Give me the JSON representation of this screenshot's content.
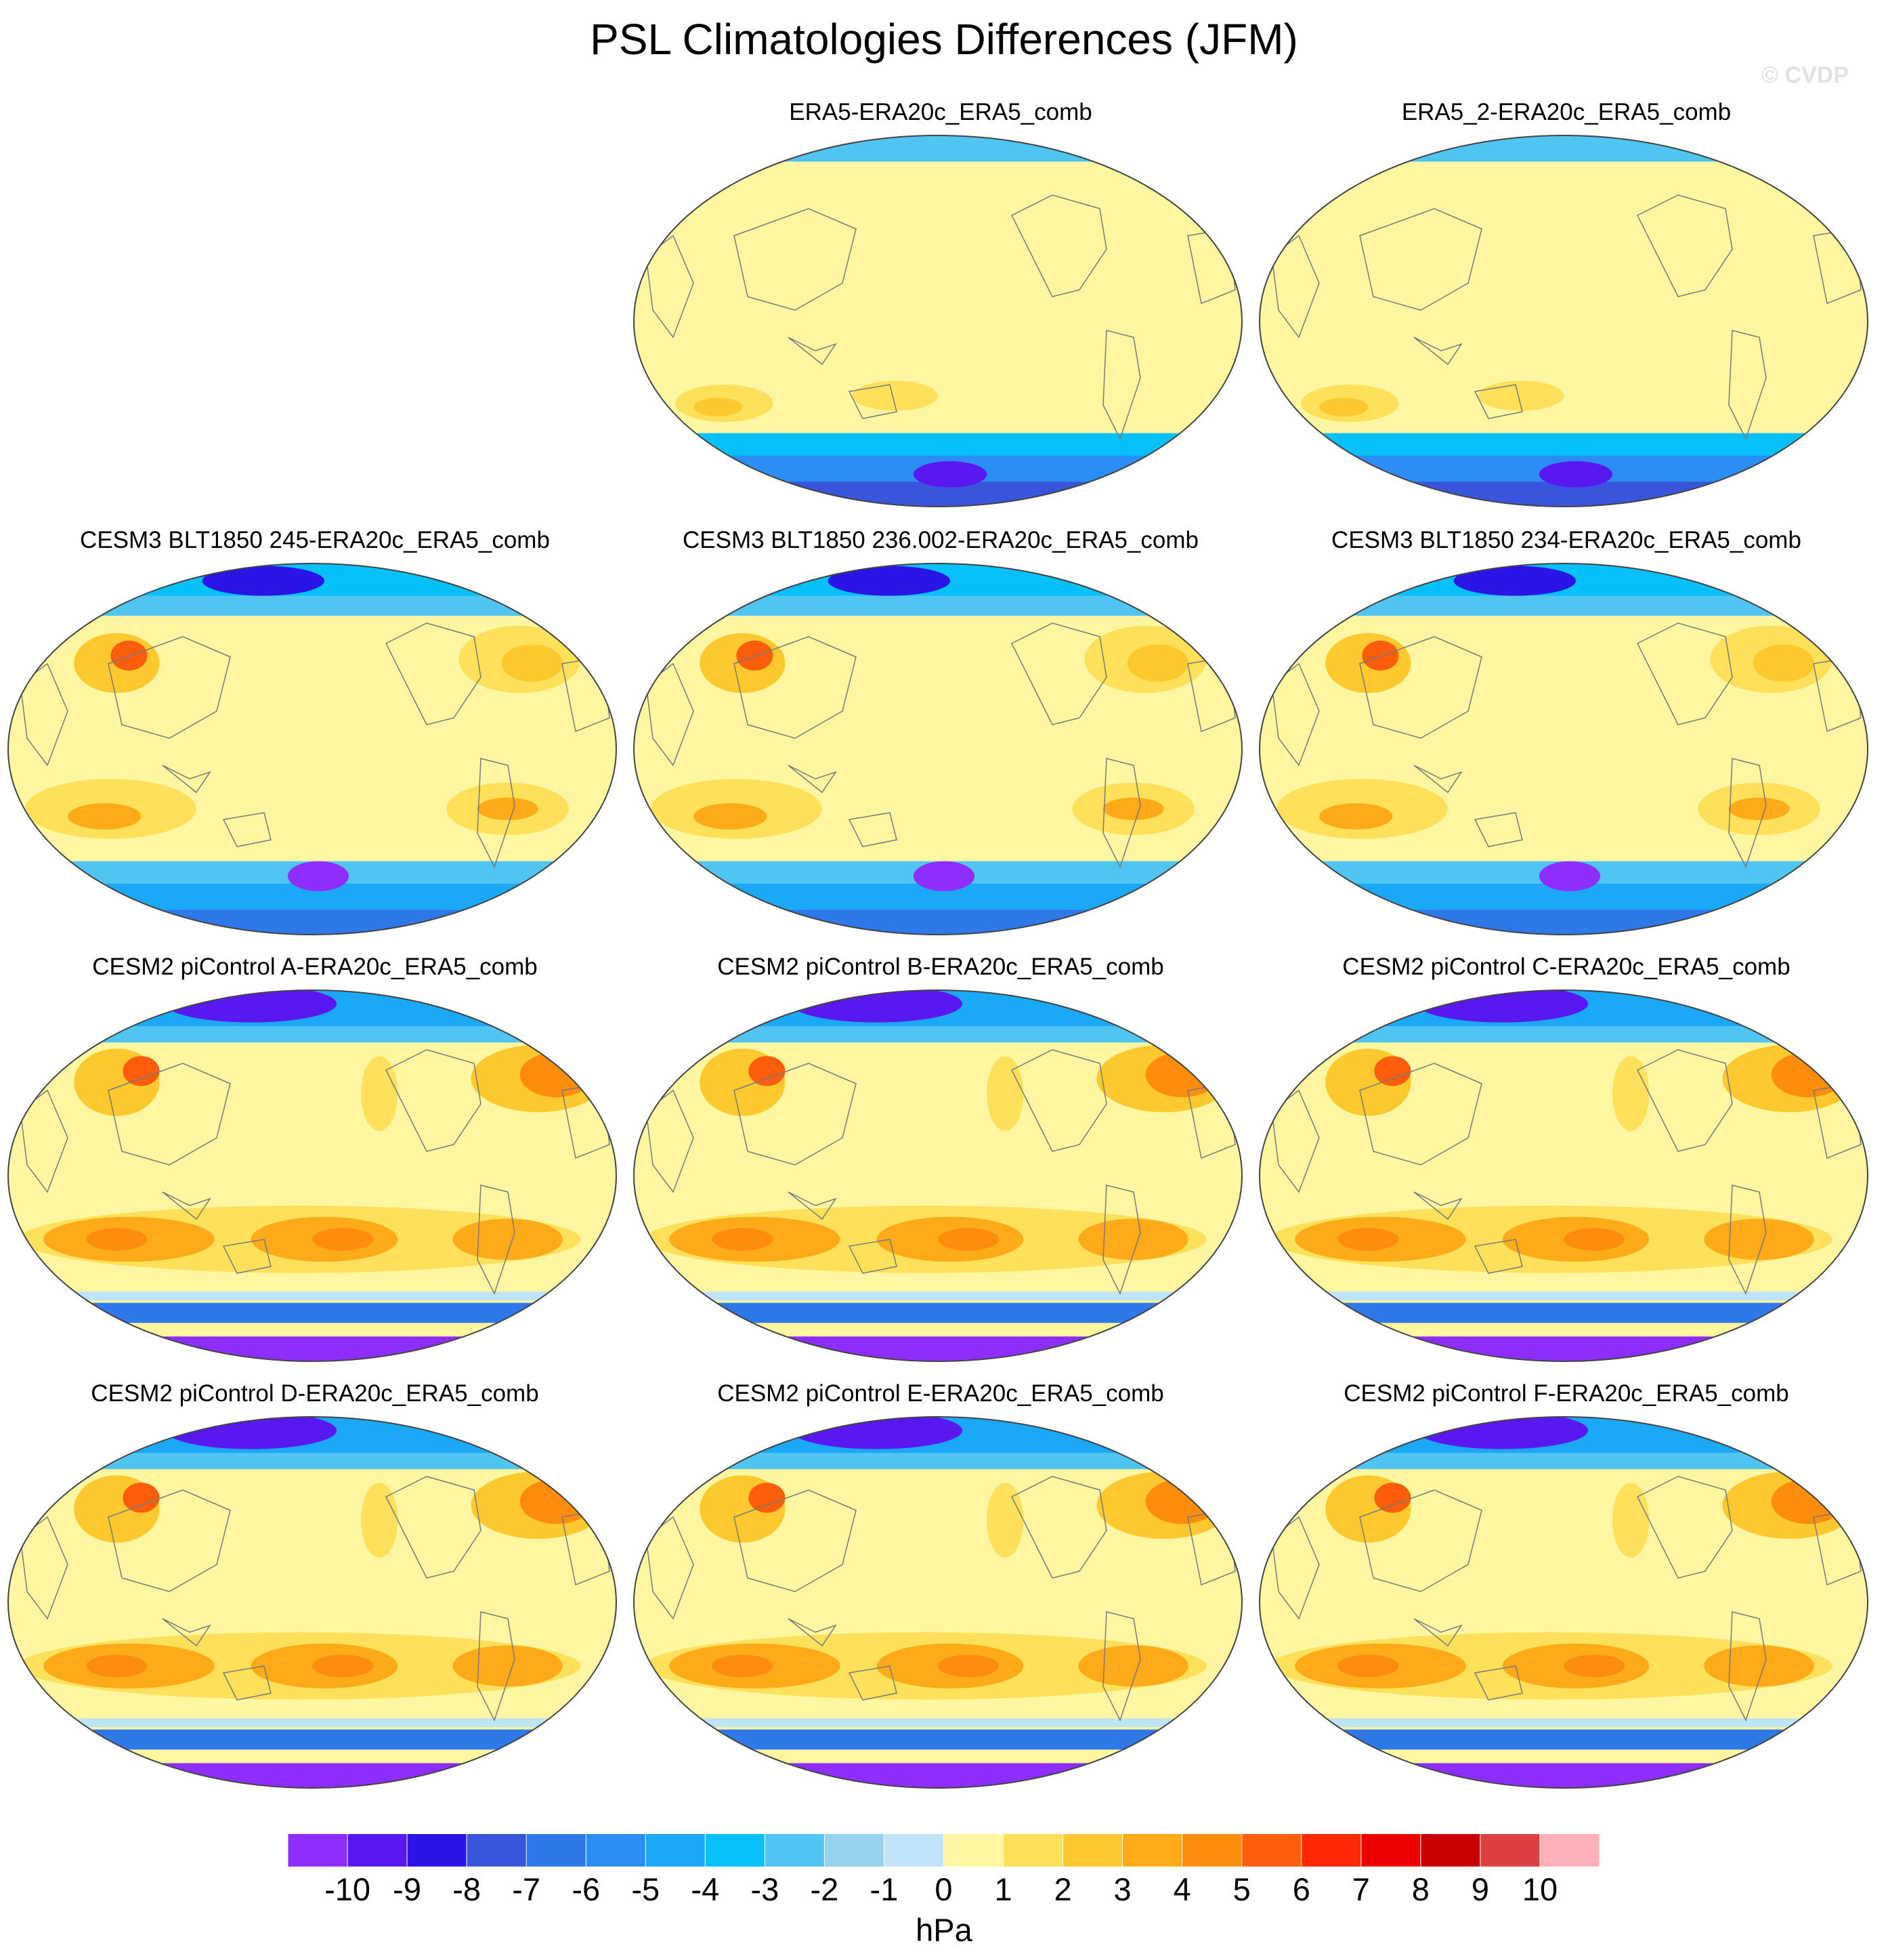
{
  "figure": {
    "title": "PSL Climatologies Differences (JFM)",
    "credit": "© CVDP",
    "variable": "PSL",
    "season": "JFM"
  },
  "panels": [
    {
      "id": "era5",
      "row": 0,
      "col": 1,
      "title": "ERA5-ERA20c_ERA5_comb",
      "pattern": "reanalysis"
    },
    {
      "id": "era5_2",
      "row": 0,
      "col": 2,
      "title": "ERA5_2-ERA20c_ERA5_comb",
      "pattern": "reanalysis"
    },
    {
      "id": "cesm3_245",
      "row": 1,
      "col": 0,
      "title": "CESM3 BLT1850 245-ERA20c_ERA5_comb",
      "pattern": "cesm3"
    },
    {
      "id": "cesm3_236",
      "row": 1,
      "col": 1,
      "title": "CESM3 BLT1850 236.002-ERA20c_ERA5_comb",
      "pattern": "cesm3"
    },
    {
      "id": "cesm3_234",
      "row": 1,
      "col": 2,
      "title": "CESM3 BLT1850 234-ERA20c_ERA5_comb",
      "pattern": "cesm3"
    },
    {
      "id": "cesm2_a",
      "row": 2,
      "col": 0,
      "title": "CESM2 piControl A-ERA20c_ERA5_comb",
      "pattern": "cesm2"
    },
    {
      "id": "cesm2_b",
      "row": 2,
      "col": 1,
      "title": "CESM2 piControl B-ERA20c_ERA5_comb",
      "pattern": "cesm2"
    },
    {
      "id": "cesm2_c",
      "row": 2,
      "col": 2,
      "title": "CESM2 piControl C-ERA20c_ERA5_comb",
      "pattern": "cesm2"
    },
    {
      "id": "cesm2_d",
      "row": 3,
      "col": 0,
      "title": "CESM2 piControl D-ERA20c_ERA5_comb",
      "pattern": "cesm2"
    },
    {
      "id": "cesm2_e",
      "row": 3,
      "col": 1,
      "title": "CESM2 piControl E-ERA20c_ERA5_comb",
      "pattern": "cesm2"
    },
    {
      "id": "cesm2_f",
      "row": 3,
      "col": 2,
      "title": "CESM2 piControl F-ERA20c_ERA5_comb",
      "pattern": "cesm2"
    }
  ],
  "colorbar": {
    "units": "hPa",
    "tick_labels": [
      "-10",
      "-9",
      "-8",
      "-7",
      "-6",
      "-5",
      "-4",
      "-3",
      "-2",
      "-1",
      "0",
      "1",
      "2",
      "3",
      "4",
      "5",
      "6",
      "7",
      "8",
      "9",
      "10"
    ],
    "colors": [
      "#8d2eff",
      "#5a18f0",
      "#2a14e6",
      "#3855db",
      "#2f78ea",
      "#2a8ef5",
      "#1ba8f7",
      "#06c0f9",
      "#51c5f2",
      "#96d2ee",
      "#bfe3f7",
      "#fef6a0",
      "#fee05a",
      "#fec92e",
      "#ffaa18",
      "#fe8c0d",
      "#fe5d0b",
      "#ff2a05",
      "#ee0000",
      "#c80000",
      "#dd4040",
      "#ffb0b8"
    ]
  }
}
